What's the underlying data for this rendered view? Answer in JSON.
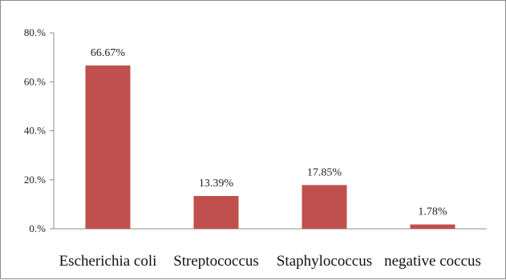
{
  "chart_data": {
    "type": "bar",
    "title": "",
    "xlabel": "",
    "ylabel": "",
    "categories": [
      "Escherichia coli",
      "Streptococcus",
      "Staphylococcus",
      "negative coccus"
    ],
    "values": [
      66.67,
      13.39,
      17.85,
      1.78
    ],
    "data_labels": [
      "66.67%",
      "13.39%",
      "17.85%",
      "1.78%"
    ],
    "ylim": [
      0,
      80
    ],
    "yticks": [
      0,
      20,
      40,
      60,
      80
    ],
    "ytick_labels": [
      "0.%",
      "20.%",
      "40.%",
      "60.%",
      "80.%"
    ],
    "grid": false,
    "legend": "none",
    "bar_color": "#c0504d"
  }
}
